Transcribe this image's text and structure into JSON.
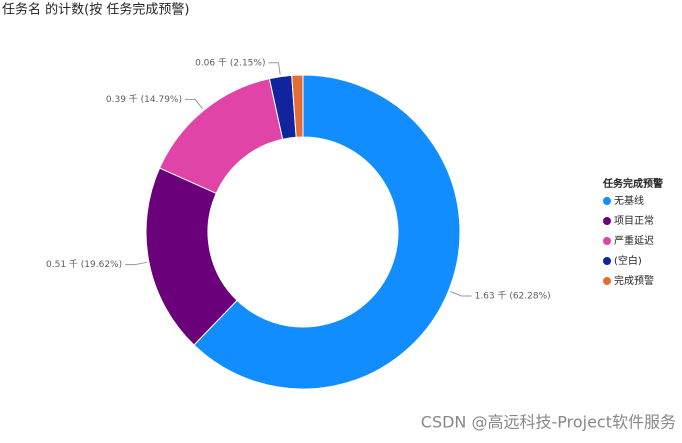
{
  "chart_data": {
    "type": "donut",
    "title": "任务名 的计数(按 任务完成预警)",
    "legend_title": "任务完成预警",
    "categories": [
      "无基线",
      "项目正常",
      "严重延迟",
      "(空白)",
      "完成预警"
    ],
    "values": [
      1.63,
      0.51,
      0.39,
      0.06,
      0.03
    ],
    "value_labels": [
      "1.63 千 (62.28%)",
      "0.51 千 (19.62%)",
      "0.39 千 (14.79%)",
      "0.06 千 (2.15%)",
      null
    ],
    "colors": [
      "#118DFF",
      "#6B007B",
      "#E044A7",
      "#12239E",
      "#E66C37"
    ],
    "legend": "right"
  },
  "watermark": "CSDN @高远科技-Project软件服务"
}
